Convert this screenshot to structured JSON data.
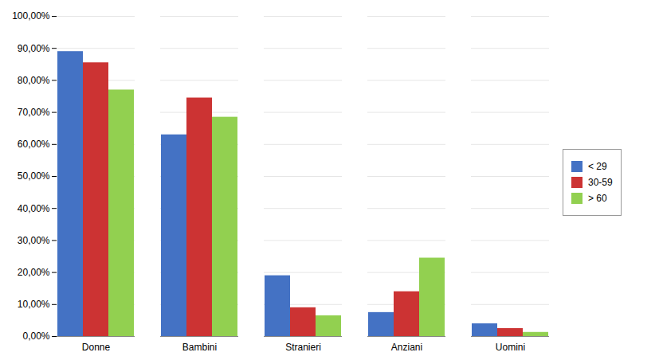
{
  "chart_data": {
    "type": "bar",
    "categories": [
      "Donne",
      "Bambini",
      "Stranieri",
      "Anziani",
      "Uomini"
    ],
    "series": [
      {
        "name": "< 29",
        "color": "#4472C4",
        "values": [
          0.89,
          0.63,
          0.19,
          0.075,
          0.04
        ]
      },
      {
        "name": "30-59",
        "color": "#CC3333",
        "values": [
          0.855,
          0.745,
          0.09,
          0.14,
          0.025
        ]
      },
      {
        "name": "> 60",
        "color": "#92D050",
        "values": [
          0.77,
          0.685,
          0.065,
          0.245,
          0.013
        ]
      }
    ],
    "ylim": [
      0,
      1.0
    ],
    "yticks": [
      {
        "value": 0.0,
        "label": "0,00%"
      },
      {
        "value": 0.1,
        "label": "10,00%"
      },
      {
        "value": 0.2,
        "label": "20,00%"
      },
      {
        "value": 0.3,
        "label": "30,00%"
      },
      {
        "value": 0.4,
        "label": "40,00%"
      },
      {
        "value": 0.5,
        "label": "50,00%"
      },
      {
        "value": 0.6,
        "label": "60,00%"
      },
      {
        "value": 0.7,
        "label": "70,00%"
      },
      {
        "value": 0.8,
        "label": "80,00%"
      },
      {
        "value": 0.9,
        "label": "90,00%"
      },
      {
        "value": 1.0,
        "label": "100,00%"
      }
    ],
    "grid": true,
    "legend": "right"
  }
}
